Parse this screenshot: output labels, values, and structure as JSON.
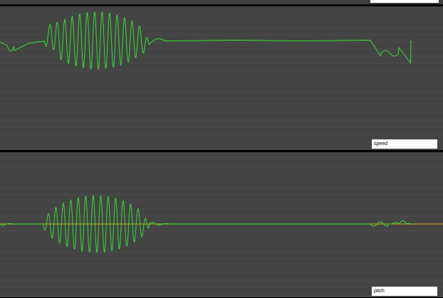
{
  "panels": [
    {
      "label": "speed",
      "line_color": "#33dd33"
    },
    {
      "label": "pitch",
      "line_color": "#33dd33",
      "baseline_color": "#c9a020"
    }
  ],
  "colors": {
    "panel_bg": "#444444",
    "grid": "#555555",
    "label_bg": "#ffffff"
  }
}
